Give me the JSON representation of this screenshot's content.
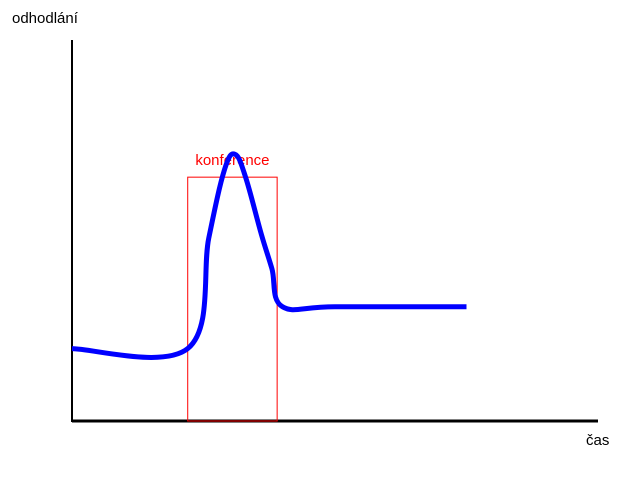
{
  "chart_data": {
    "type": "line",
    "ylabel": "odhodlání",
    "xlabel": "čas",
    "grid": false,
    "legend": "none",
    "x_ticks": [],
    "y_ticks": [],
    "xlim": [
      0,
      100
    ],
    "ylim": [
      0,
      100
    ],
    "series": [
      {
        "color": "#0000ff",
        "points": [
          [
            0,
            19
          ],
          [
            22,
            19
          ],
          [
            26,
            48
          ],
          [
            29,
            66
          ],
          [
            31,
            70
          ],
          [
            33,
            64
          ],
          [
            36,
            49
          ],
          [
            38,
            40
          ],
          [
            40,
            30
          ],
          [
            50,
            30
          ],
          [
            75,
            30
          ]
        ]
      }
    ],
    "annotations": [
      {
        "type": "rect",
        "label": "konference",
        "x_range": [
          22,
          39
        ],
        "y_range": [
          0,
          64
        ],
        "color": "#ff0000"
      }
    ]
  }
}
